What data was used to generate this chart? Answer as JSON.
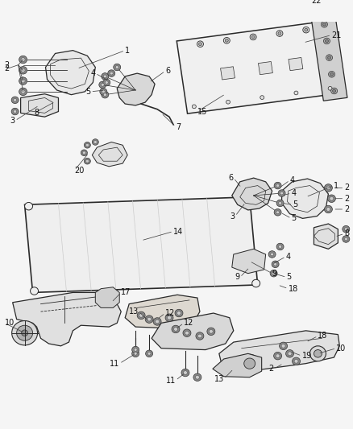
{
  "bg_color": "#f5f5f5",
  "fig_width": 4.38,
  "fig_height": 5.33,
  "dpi": 100,
  "edge_color": "#2a2a2a",
  "fill_light": "#e8e8e8",
  "fill_mid": "#d0d0d0",
  "fill_dark": "#b0b0b0",
  "bolt_outer": "#555555",
  "bolt_inner": "#c8c8c8",
  "line_color": "#333333",
  "label_color": "#111111",
  "label_fs": 7.0,
  "leader_lw": 0.55,
  "part_lw": 0.9
}
